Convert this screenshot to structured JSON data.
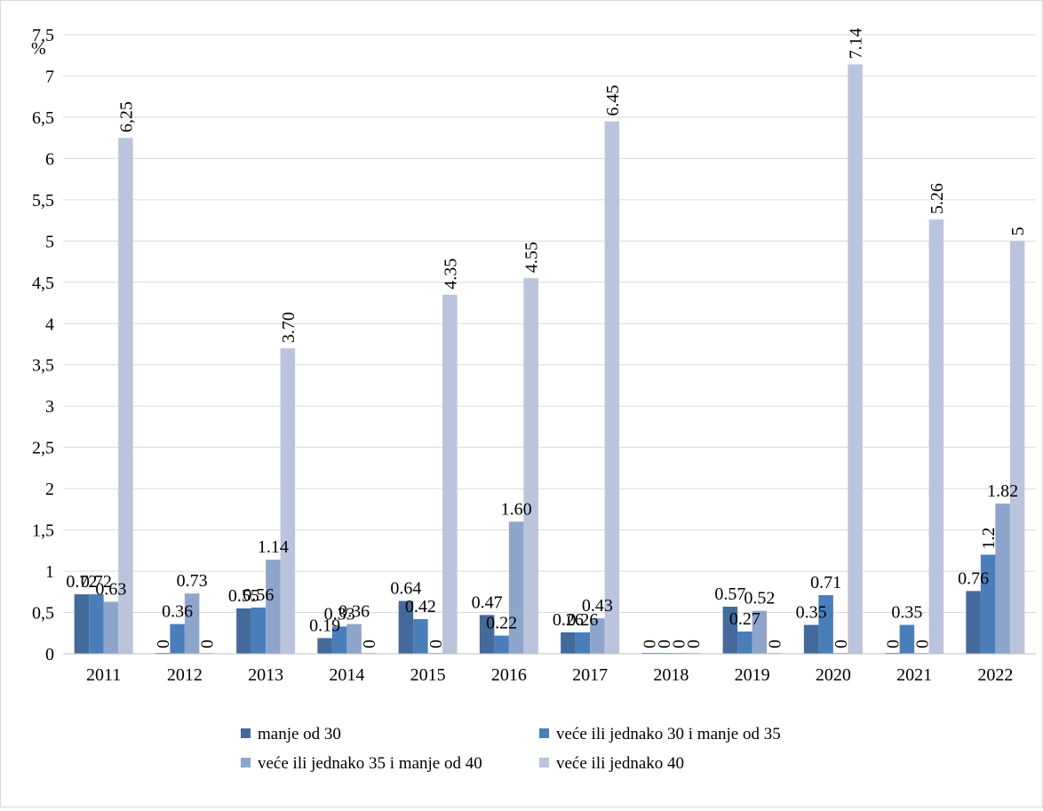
{
  "chart_data": {
    "type": "bar",
    "title": "",
    "xlabel": "",
    "ylabel": "%",
    "ylim": [
      0,
      7.5
    ],
    "yticks": [
      "0",
      "0,5",
      "1",
      "1,5",
      "2",
      "2,5",
      "3",
      "3,5",
      "4",
      "4,5",
      "5",
      "5,5",
      "6",
      "6,5",
      "7",
      "7,5"
    ],
    "grid": true,
    "legend_position": "bottom",
    "categories": [
      "2011",
      "2012",
      "2013",
      "2014",
      "2015",
      "2016",
      "2017",
      "2018",
      "2019",
      "2020",
      "2021",
      "2022"
    ],
    "series": [
      {
        "name": "manje od 30",
        "color": "#44699B",
        "values": [
          0.72,
          0,
          0.55,
          0.19,
          0.64,
          0.47,
          0.26,
          0,
          0.57,
          0.35,
          0,
          0.76
        ],
        "labels": [
          "0.72",
          "0",
          "0.55",
          "0.19",
          "0.64",
          "0.47",
          "0.26",
          "0",
          "0.57",
          "0.35",
          "0",
          "0.76"
        ],
        "label_rotated": [
          false,
          true,
          false,
          false,
          false,
          false,
          false,
          true,
          false,
          false,
          true,
          false
        ]
      },
      {
        "name": "veće ili jednako 30 i manje od 35",
        "color": "#4A7EBB",
        "values": [
          0.72,
          0.36,
          0.56,
          0.33,
          0.42,
          0.22,
          0.26,
          0,
          0.27,
          0.71,
          0.35,
          1.2
        ],
        "labels": [
          "0.72",
          "0.36",
          "0.56",
          "0.33",
          "0.42",
          "0.22",
          "0.26",
          "0",
          "0.27",
          "0.71",
          "0.35",
          "1.2"
        ],
        "label_rotated": [
          false,
          false,
          false,
          false,
          false,
          false,
          false,
          true,
          false,
          false,
          false,
          true
        ]
      },
      {
        "name": "veće ili jednako 35 i manje od 40",
        "color": "#8EA5CB",
        "values": [
          0.63,
          0.73,
          1.14,
          0.36,
          0,
          1.6,
          0.43,
          0,
          0.52,
          0,
          0,
          1.82
        ],
        "labels": [
          "0.63",
          "0.73",
          "1.14",
          "0.36",
          "0",
          "1.60",
          "0.43",
          "0",
          "0.52",
          "0",
          "0",
          "1.82"
        ],
        "label_rotated": [
          false,
          false,
          false,
          false,
          true,
          false,
          false,
          true,
          false,
          true,
          true,
          false
        ]
      },
      {
        "name": "veće ili jednako 40",
        "color": "#BAC4DC",
        "values": [
          6.25,
          0,
          3.7,
          0,
          4.35,
          4.55,
          6.45,
          0,
          0,
          7.14,
          5.26,
          5
        ],
        "labels": [
          "6,25",
          "0",
          "3.70",
          "0",
          "4.35",
          "4.55",
          "6.45",
          "0",
          "0",
          "7.14",
          "5.26",
          "5"
        ],
        "label_rotated": [
          true,
          true,
          true,
          true,
          true,
          true,
          true,
          true,
          true,
          true,
          true,
          true
        ]
      }
    ]
  }
}
